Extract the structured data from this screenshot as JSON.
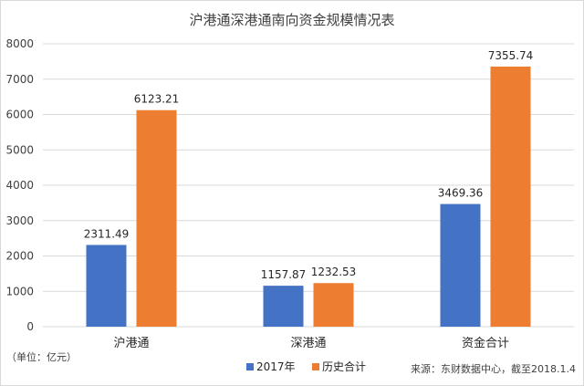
{
  "chart_data": {
    "type": "bar",
    "title": "沪港通深港通南向资金规模情况表",
    "categories": [
      "沪港通",
      "深港通",
      "资金合计"
    ],
    "series": [
      {
        "name": "2017年",
        "values": [
          2311.49,
          1157.87,
          3469.36
        ],
        "value_labels": [
          "2311.49",
          "1157.87",
          "3469.36"
        ],
        "color": "#4472C4"
      },
      {
        "name": "历史合计",
        "values": [
          6123.21,
          1232.53,
          7355.74
        ],
        "value_labels": [
          "6123.21",
          "1232.53",
          "7355.74"
        ],
        "color": "#ED7D31"
      }
    ],
    "ylim": [
      0,
      8000
    ],
    "yticks": [
      "0",
      "1000",
      "2000",
      "3000",
      "4000",
      "5000",
      "6000",
      "7000",
      "8000"
    ],
    "grid": true,
    "legend_position": "bottom",
    "unit_note": "（单位：亿元）",
    "source_note": "来源：东财数据中心，截至2018.1.4"
  }
}
